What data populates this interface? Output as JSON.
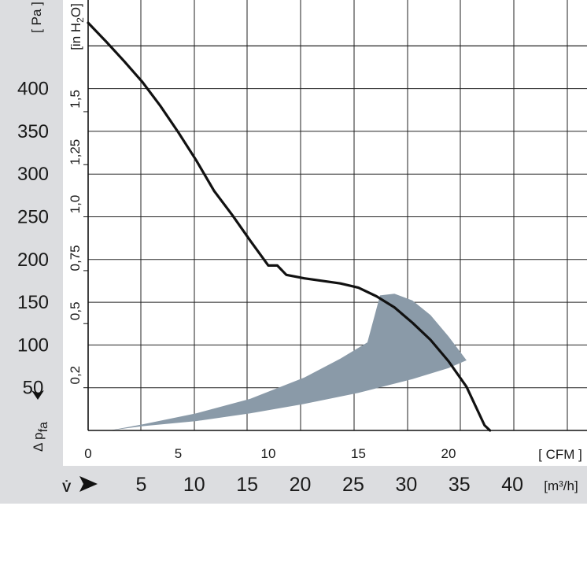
{
  "chart_data": {
    "type": "line",
    "x": {
      "unit_label": "[ CFM ]",
      "range": [
        0,
        27.5
      ],
      "ticks": [
        0,
        5,
        10,
        15,
        20
      ],
      "tick_labels": [
        "0",
        "5",
        "10",
        "15",
        "20"
      ]
    },
    "x_secondary": {
      "axis_label": "V̇",
      "unit_label": "[m³/h]",
      "ticks": [
        5,
        10,
        15,
        20,
        25,
        30,
        35,
        40
      ],
      "tick_labels": [
        "5",
        "10",
        "15",
        "20",
        "25",
        "30",
        "35",
        "40"
      ]
    },
    "y_left": {
      "axis_label_main": "Δ p",
      "axis_label_sub": "fa",
      "unit_label": "[ Pa ]",
      "range": [
        0,
        480
      ],
      "ticks": [
        50,
        100,
        150,
        200,
        250,
        300,
        350,
        400
      ],
      "tick_labels": [
        "50",
        "100",
        "150",
        "200",
        "250",
        "300",
        "350",
        "400"
      ]
    },
    "y_right": {
      "unit_main": "[in H",
      "unit_sub": "2",
      "unit_end": "O]",
      "ticks_pa": [
        50,
        125,
        187,
        250,
        311,
        373
      ],
      "tick_labels": [
        "0,2",
        "0,5",
        "0,75",
        "1,0",
        "1,25",
        "1,5"
      ]
    },
    "series": [
      {
        "color": "#111111",
        "points": [
          [
            0,
            477
          ],
          [
            1,
            455
          ],
          [
            2,
            432
          ],
          [
            3,
            408
          ],
          [
            4,
            380
          ],
          [
            5,
            349
          ],
          [
            6,
            316
          ],
          [
            7,
            280
          ],
          [
            8,
            252
          ],
          [
            9,
            222
          ],
          [
            10,
            193
          ],
          [
            10.5,
            193
          ],
          [
            11,
            182
          ],
          [
            12,
            178
          ],
          [
            13,
            175
          ],
          [
            14,
            172
          ],
          [
            15,
            167
          ],
          [
            16,
            157
          ],
          [
            17,
            144
          ],
          [
            18,
            126
          ],
          [
            19,
            106
          ],
          [
            20,
            81
          ],
          [
            21,
            51
          ],
          [
            22,
            6
          ],
          [
            22.3,
            0
          ]
        ]
      }
    ],
    "operating_region": {
      "color": "#8a9aa8",
      "polygon": [
        [
          1.2,
          0
        ],
        [
          3,
          7
        ],
        [
          6,
          20
        ],
        [
          9,
          37
        ],
        [
          12,
          62
        ],
        [
          14,
          84
        ],
        [
          15.5,
          103
        ],
        [
          16.2,
          158
        ],
        [
          17,
          160
        ],
        [
          18,
          152
        ],
        [
          19,
          135
        ],
        [
          20,
          110
        ],
        [
          21,
          82
        ],
        [
          20,
          73
        ],
        [
          18,
          60
        ],
        [
          15,
          44
        ],
        [
          12,
          31
        ],
        [
          9,
          20
        ],
        [
          6,
          11
        ],
        [
          3,
          5
        ]
      ]
    },
    "grid": true
  }
}
